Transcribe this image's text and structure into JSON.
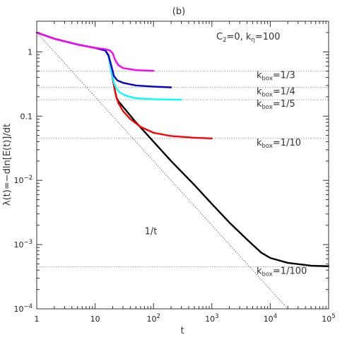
{
  "chart_data": {
    "type": "line",
    "title": "(b)",
    "xlabel": "t",
    "ylabel": "λ(t)=−dln[E(t)]/dt",
    "x_scale": "log",
    "y_scale": "log",
    "xlim": [
      1,
      100000
    ],
    "ylim": [
      0.0001,
      3
    ],
    "annotation": {
      "c2": "C",
      "c2_sub": "2",
      "c2_val": "=0,  k",
      "keta_sub": "η",
      "keta_val": "=100"
    },
    "x_ticks": [
      {
        "value": 1,
        "base": "1",
        "exp": ""
      },
      {
        "value": 10,
        "base": "10",
        "exp": ""
      },
      {
        "value": 100,
        "base": "10",
        "exp": "2"
      },
      {
        "value": 1000,
        "base": "10",
        "exp": "3"
      },
      {
        "value": 10000,
        "base": "10",
        "exp": "4"
      },
      {
        "value": 100000,
        "base": "10",
        "exp": "5"
      }
    ],
    "y_ticks": [
      {
        "value": 1,
        "base": "1",
        "exp": ""
      },
      {
        "value": 0.1,
        "base": "0.1",
        "exp": ""
      },
      {
        "value": 0.01,
        "base": "10",
        "exp": "−2"
      },
      {
        "value": 0.001,
        "base": "10",
        "exp": "−3"
      },
      {
        "value": 0.0001,
        "base": "10",
        "exp": "−4"
      }
    ],
    "reference_line": {
      "label": "1/t",
      "points": [
        [
          1,
          2.0
        ],
        [
          20000,
          0.0001
        ]
      ]
    },
    "asymptotes": [
      {
        "y": 0.5,
        "label_pre": "k",
        "label_sub": "box",
        "label_post": "=1/3",
        "color": "#888888"
      },
      {
        "y": 0.28,
        "label_pre": "k",
        "label_sub": "box",
        "label_post": "=1/4",
        "color": "#888888"
      },
      {
        "y": 0.18,
        "label_pre": "k",
        "label_sub": "box",
        "label_post": "=1/5",
        "color": "#888888"
      },
      {
        "y": 0.045,
        "label_pre": "k",
        "label_sub": "box",
        "label_post": "=1/10",
        "color": "#888888"
      },
      {
        "y": 0.00045,
        "label_pre": "k",
        "label_sub": "box",
        "label_post": "=1/100",
        "color": "#888888"
      }
    ],
    "series": [
      {
        "color": "#000000",
        "points": [
          [
            1,
            2.0
          ],
          [
            2,
            1.6
          ],
          [
            5,
            1.3
          ],
          [
            10,
            1.15
          ],
          [
            15,
            1.05
          ],
          [
            17,
            0.85
          ],
          [
            19,
            0.5
          ],
          [
            21,
            0.3
          ],
          [
            23,
            0.2
          ],
          [
            25,
            0.17
          ],
          [
            30,
            0.14
          ],
          [
            50,
            0.08
          ],
          [
            100,
            0.04
          ],
          [
            200,
            0.02
          ],
          [
            500,
            0.0085
          ],
          [
            1000,
            0.0043
          ],
          [
            2000,
            0.0022
          ],
          [
            4000,
            0.0012
          ],
          [
            7000,
            0.00075
          ],
          [
            10000,
            0.00062
          ],
          [
            20000,
            0.00052
          ],
          [
            50000,
            0.00047
          ],
          [
            100000,
            0.00046
          ]
        ]
      },
      {
        "color": "#ff0000",
        "points": [
          [
            1,
            2.0
          ],
          [
            2,
            1.6
          ],
          [
            5,
            1.3
          ],
          [
            10,
            1.15
          ],
          [
            15,
            1.05
          ],
          [
            17,
            0.85
          ],
          [
            19,
            0.5
          ],
          [
            21,
            0.3
          ],
          [
            23,
            0.2
          ],
          [
            25,
            0.16
          ],
          [
            30,
            0.12
          ],
          [
            40,
            0.09
          ],
          [
            60,
            0.068
          ],
          [
            100,
            0.055
          ],
          [
            200,
            0.049
          ],
          [
            500,
            0.046
          ],
          [
            1000,
            0.045
          ]
        ]
      },
      {
        "color": "#00ffff",
        "points": [
          [
            1,
            2.0
          ],
          [
            2,
            1.6
          ],
          [
            5,
            1.3
          ],
          [
            10,
            1.15
          ],
          [
            15,
            1.05
          ],
          [
            17,
            0.85
          ],
          [
            19,
            0.5
          ],
          [
            21,
            0.33
          ],
          [
            23,
            0.27
          ],
          [
            27,
            0.23
          ],
          [
            35,
            0.205
          ],
          [
            50,
            0.19
          ],
          [
            100,
            0.183
          ],
          [
            200,
            0.181
          ],
          [
            300,
            0.18
          ]
        ]
      },
      {
        "color": "#0000cc",
        "points": [
          [
            1,
            2.0
          ],
          [
            2,
            1.6
          ],
          [
            5,
            1.3
          ],
          [
            10,
            1.15
          ],
          [
            15,
            1.05
          ],
          [
            17,
            0.88
          ],
          [
            19,
            0.6
          ],
          [
            21,
            0.42
          ],
          [
            24,
            0.36
          ],
          [
            30,
            0.33
          ],
          [
            50,
            0.3
          ],
          [
            100,
            0.288
          ],
          [
            200,
            0.28
          ]
        ]
      },
      {
        "color": "#ff00ff",
        "points": [
          [
            1,
            2.0
          ],
          [
            2,
            1.6
          ],
          [
            5,
            1.3
          ],
          [
            10,
            1.15
          ],
          [
            15,
            1.1
          ],
          [
            18,
            1.05
          ],
          [
            20,
            0.95
          ],
          [
            22,
            0.75
          ],
          [
            25,
            0.62
          ],
          [
            30,
            0.56
          ],
          [
            50,
            0.52
          ],
          [
            100,
            0.505
          ]
        ]
      }
    ]
  }
}
